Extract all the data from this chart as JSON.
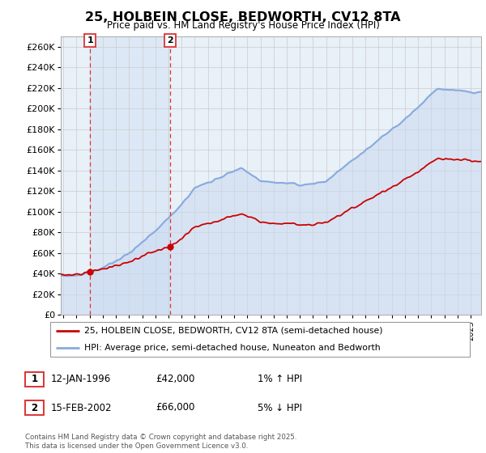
{
  "title": "25, HOLBEIN CLOSE, BEDWORTH, CV12 8TA",
  "subtitle": "Price paid vs. HM Land Registry's House Price Index (HPI)",
  "legend_line1": "25, HOLBEIN CLOSE, BEDWORTH, CV12 8TA (semi-detached house)",
  "legend_line2": "HPI: Average price, semi-detached house, Nuneaton and Bedworth",
  "annotation1_label": "1",
  "annotation1_date": "12-JAN-1996",
  "annotation1_price": "£42,000",
  "annotation1_hpi": "1% ↑ HPI",
  "annotation2_label": "2",
  "annotation2_date": "15-FEB-2002",
  "annotation2_price": "£66,000",
  "annotation2_hpi": "5% ↓ HPI",
  "footnote": "Contains HM Land Registry data © Crown copyright and database right 2025.\nThis data is licensed under the Open Government Licence v3.0.",
  "ylim": [
    0,
    270000
  ],
  "yticks": [
    0,
    20000,
    40000,
    60000,
    80000,
    100000,
    120000,
    140000,
    160000,
    180000,
    200000,
    220000,
    240000,
    260000
  ],
  "ytick_labels": [
    "£0",
    "£20K",
    "£40K",
    "£60K",
    "£80K",
    "£100K",
    "£120K",
    "£140K",
    "£160K",
    "£180K",
    "£200K",
    "£220K",
    "£240K",
    "£260K"
  ],
  "hpi_color": "#88aadd",
  "price_color": "#cc0000",
  "vline_color": "#dd3333",
  "bg_color": "#e8f0f8",
  "shaded_color": "#dce8f5",
  "grid_color": "#cccccc",
  "purchase1_x": 1996.04,
  "purchase1_y": 42000,
  "purchase2_x": 2002.12,
  "purchase2_y": 66000,
  "xmin": 1993.8,
  "xmax": 2025.8
}
